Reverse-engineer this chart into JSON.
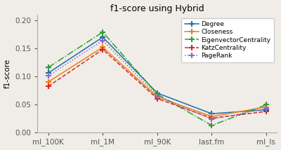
{
  "title": "f1-score using Hybrid",
  "ylabel": "f1-score",
  "x_labels": [
    "ml_100K",
    "ml_1M",
    "ml_90K",
    "last.fm",
    "ml_ls"
  ],
  "ylim": [
    0.0,
    0.21
  ],
  "yticks": [
    0.0,
    0.05,
    0.1,
    0.15,
    0.2
  ],
  "series": [
    {
      "name": "Degree",
      "color": "#1a6faf",
      "linestyle": "-",
      "marker": "+",
      "markerfacecolor": "#1a6faf",
      "values": [
        0.106,
        0.17,
        0.07,
        0.033,
        0.04
      ]
    },
    {
      "name": "Closeness",
      "color": "#f07f17",
      "linestyle": "-",
      "marker": "+",
      "markerfacecolor": "none",
      "values": [
        0.09,
        0.152,
        0.063,
        0.028,
        0.045
      ]
    },
    {
      "name": "EigenvectorCentrality",
      "color": "#2ca02c",
      "linestyle": "-.",
      "marker": "+",
      "markerfacecolor": "#2ca02c",
      "values": [
        0.116,
        0.179,
        0.068,
        0.012,
        0.049
      ]
    },
    {
      "name": "KatzCentrality",
      "color": "#d62728",
      "linestyle": "--",
      "marker": "+",
      "markerfacecolor": "none",
      "values": [
        0.082,
        0.148,
        0.06,
        0.025,
        0.037
      ]
    },
    {
      "name": "PageRank",
      "color": "#9467bd",
      "linestyle": ":",
      "marker": "+",
      "markerfacecolor": "none",
      "values": [
        0.101,
        0.164,
        0.065,
        0.023,
        0.042
      ]
    }
  ],
  "figsize": [
    4.0,
    2.14
  ],
  "dpi": 100,
  "background_color": "#f0ede8",
  "legend_fontsize": 6.5,
  "axis_fontsize": 7.5,
  "title_fontsize": 9
}
